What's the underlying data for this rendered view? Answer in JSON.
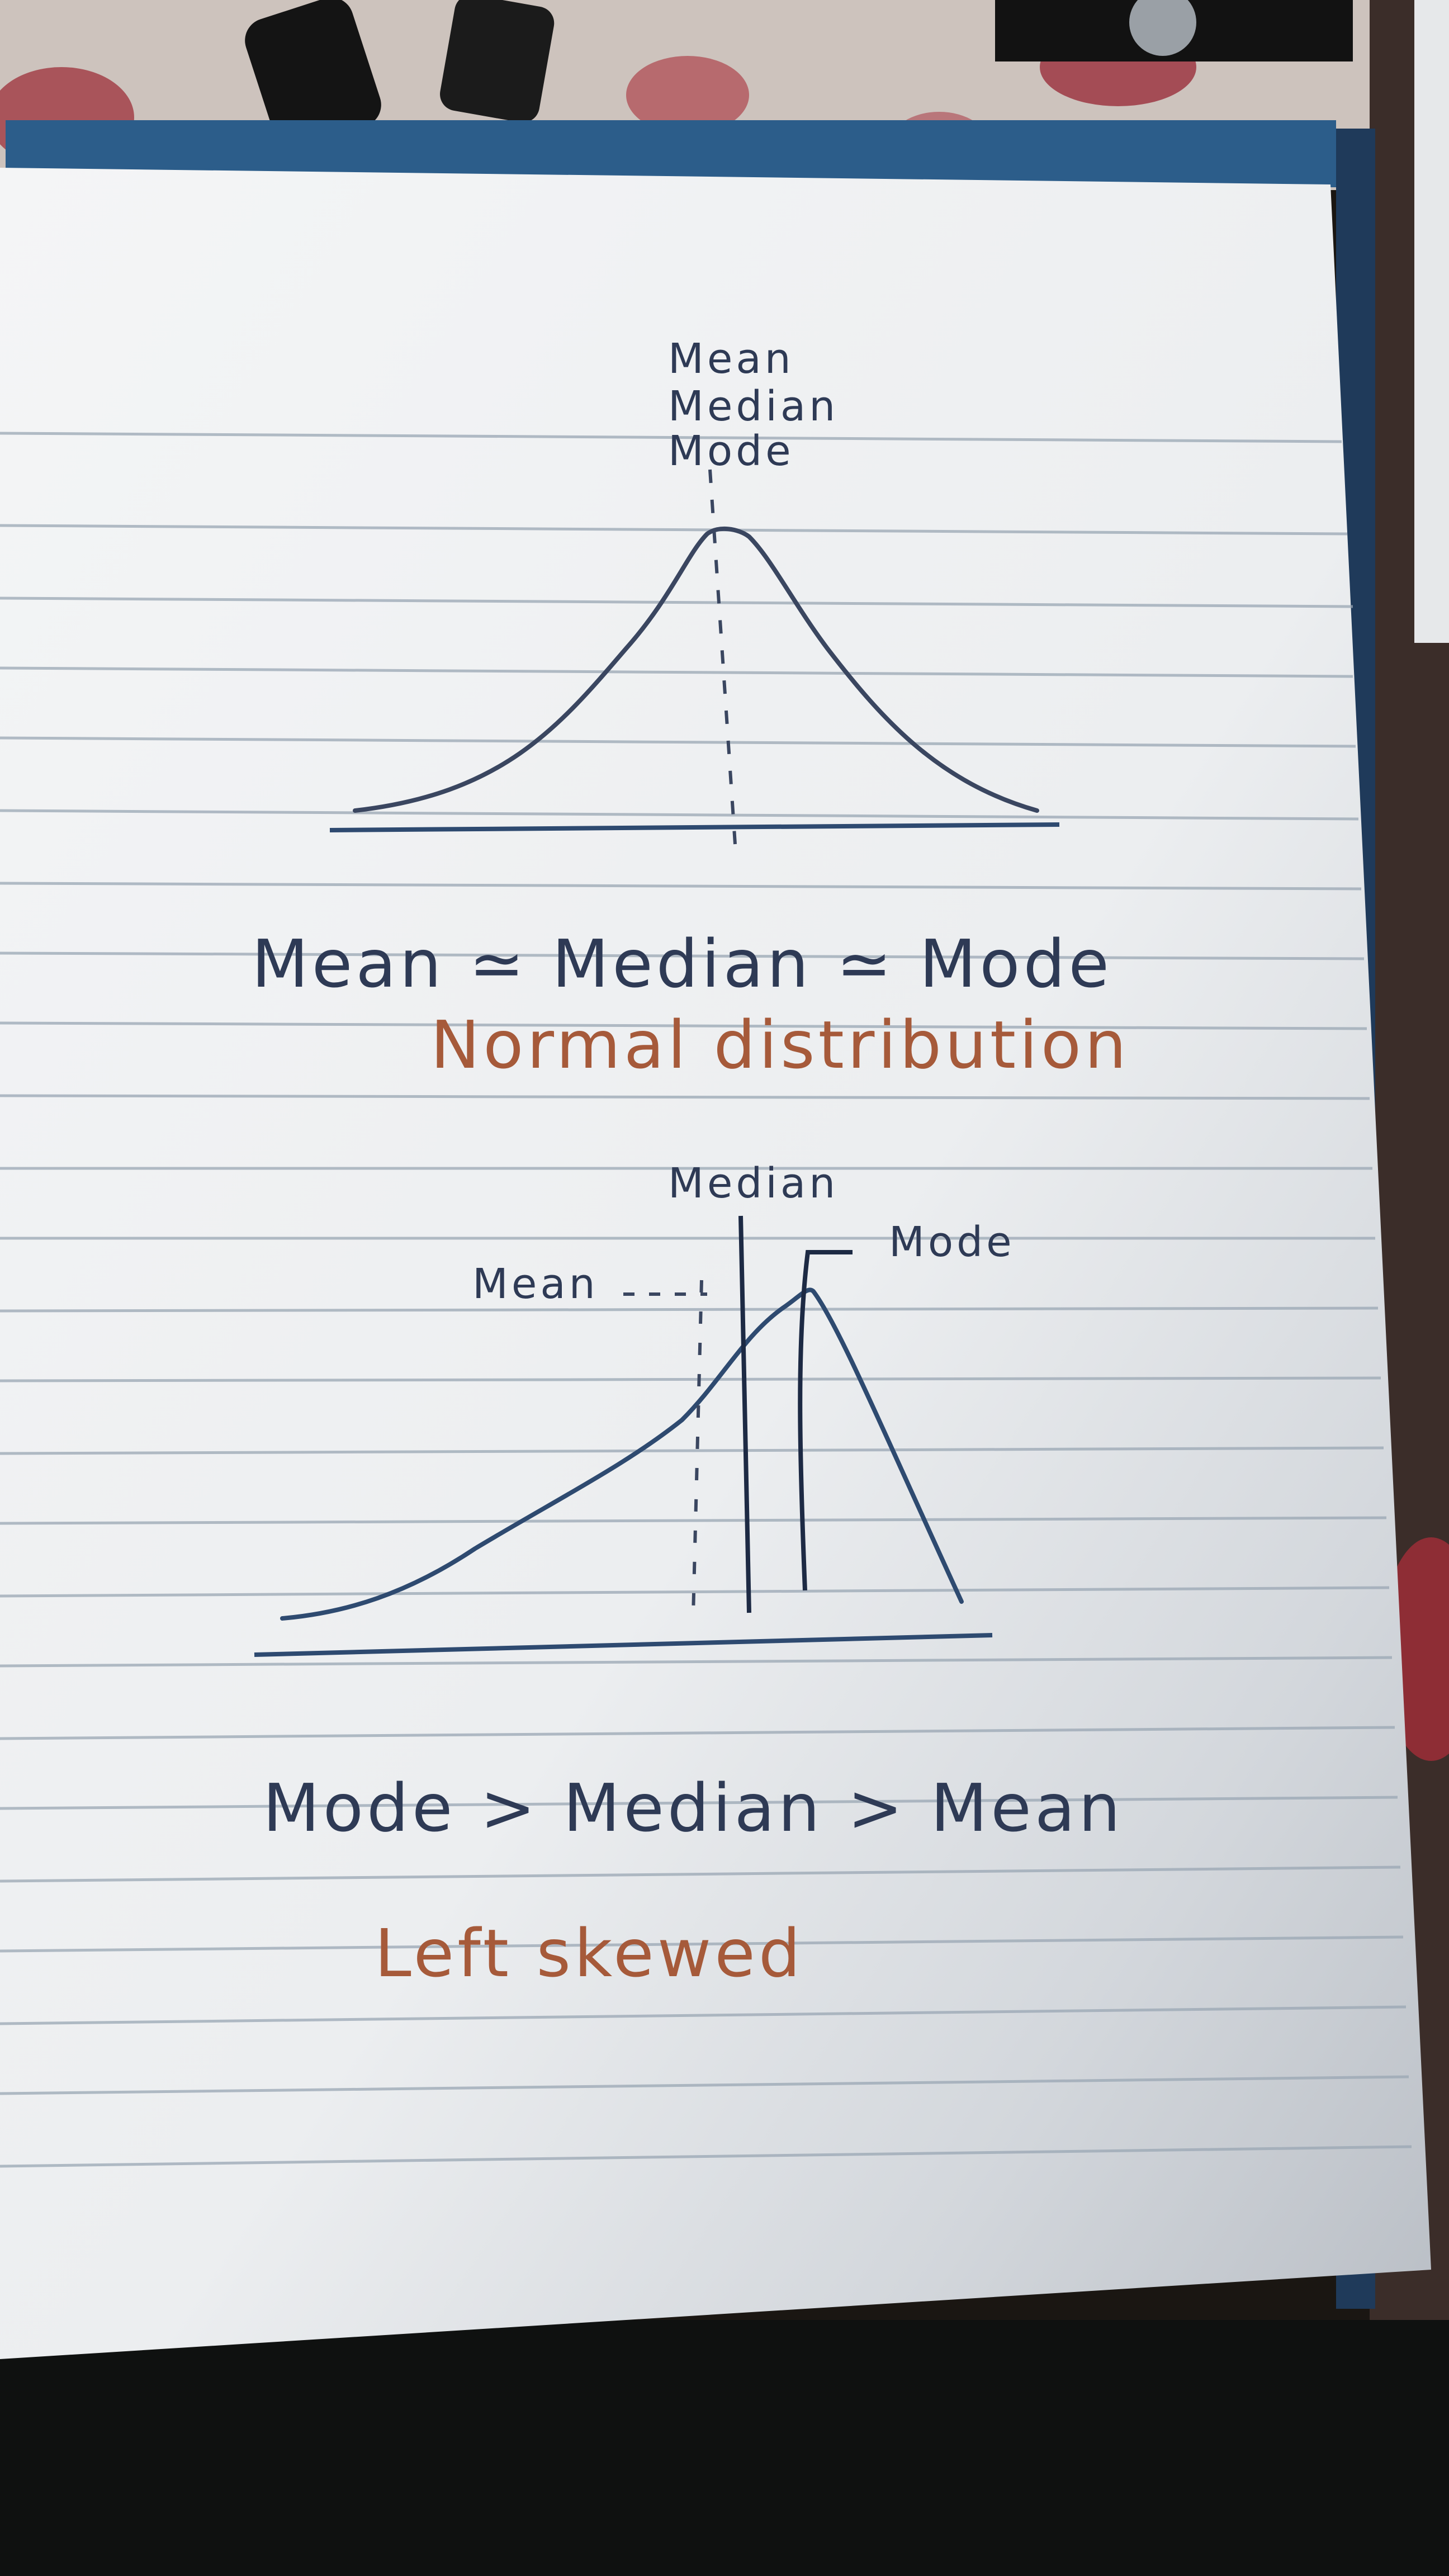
{
  "diagram_1": {
    "peak_labels": [
      "Mean",
      "Median",
      "Mode"
    ],
    "relation": "Mean ≃ Median ≃ Mode",
    "caption": "Normal distribution"
  },
  "diagram_2": {
    "median_label": "Median",
    "mode_label": "Mode",
    "mean_label": "Mean",
    "relation": "Mode > Median > Mean",
    "caption": "Left skewed"
  },
  "colors": {
    "paper": "#eef0f2",
    "rule_line": "#9aa7b4",
    "ink_blue": "#2e3a55",
    "ink_orange": "#a65a3a",
    "background": "#1a1612"
  }
}
